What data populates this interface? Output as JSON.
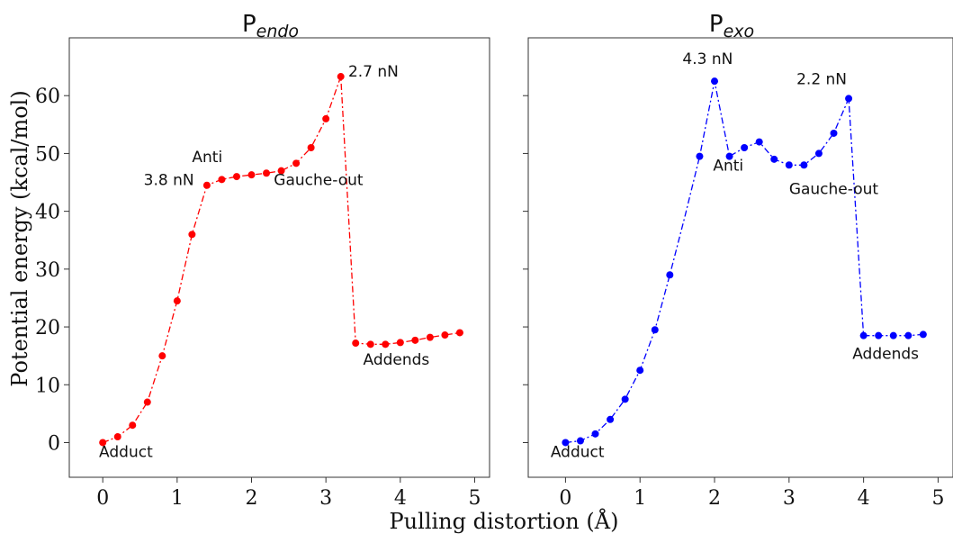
{
  "figure": {
    "ylabel": "Potential energy (kcal/mol)",
    "xlabel": "Pulling distortion (Å)"
  },
  "chart_data": [
    {
      "type": "line",
      "title_main": "P",
      "title_sub": "endo",
      "color": "#ff0000",
      "xlim": [
        -0.45,
        5.2
      ],
      "ylim": [
        -6,
        70
      ],
      "xticks": [
        0,
        1,
        2,
        3,
        4,
        5
      ],
      "yticks": [
        0,
        10,
        20,
        30,
        40,
        50,
        60
      ],
      "x": [
        0,
        0.2,
        0.4,
        0.6,
        0.8,
        1.0,
        1.2,
        1.4,
        1.6,
        1.8,
        2.0,
        2.2,
        2.4,
        2.6,
        2.8,
        3.0,
        3.2,
        3.4,
        3.6,
        3.8,
        4.0,
        4.2,
        4.4,
        4.6,
        4.8
      ],
      "y": [
        0,
        1,
        3,
        7,
        15,
        24.5,
        36,
        44.5,
        45.5,
        46,
        46.3,
        46.6,
        47,
        48.3,
        51,
        56,
        63.3,
        17.2,
        17,
        17,
        17.3,
        17.7,
        18.2,
        18.6,
        19
      ],
      "markers": [
        true,
        true,
        true,
        true,
        true,
        true,
        true,
        true,
        true,
        true,
        true,
        true,
        true,
        true,
        true,
        true,
        true,
        true,
        true,
        true,
        true,
        true,
        true,
        true,
        true
      ],
      "annotations": [
        {
          "text": "3.8 nN",
          "x": 0.55,
          "y": 44.5
        },
        {
          "text": "2.7 nN",
          "x": 3.3,
          "y": 63.3
        },
        {
          "text": "Anti",
          "x": 1.2,
          "y": 48.5
        },
        {
          "text": "Gauche-out",
          "x": 2.3,
          "y": 44.5
        },
        {
          "text": "Addends",
          "x": 3.5,
          "y": 13.5
        },
        {
          "text": "Adduct",
          "x": -0.05,
          "y": -2.5
        }
      ]
    },
    {
      "type": "line",
      "title_main": "P",
      "title_sub": "exo",
      "color": "#0000ff",
      "xlim": [
        -0.5,
        5.2
      ],
      "ylim": [
        -6,
        70
      ],
      "xticks": [
        0,
        1,
        2,
        3,
        4,
        5
      ],
      "yticks": [
        0,
        10,
        20,
        30,
        40,
        50,
        60
      ],
      "x": [
        0,
        0.2,
        0.4,
        0.6,
        0.8,
        1.0,
        1.2,
        1.4,
        1.6,
        1.8,
        2.0,
        2.2,
        2.4,
        2.6,
        2.8,
        3.0,
        3.2,
        3.4,
        3.6,
        3.8,
        4.0,
        4.2,
        4.4,
        4.6,
        4.8
      ],
      "y": [
        0,
        0.3,
        1.5,
        4,
        7.5,
        12.5,
        19.5,
        29,
        39,
        49.5,
        62.5,
        49.5,
        51,
        52,
        49,
        48,
        48,
        50,
        53.5,
        59.5,
        18.5,
        18.5,
        18.5,
        18.5,
        18.7
      ],
      "markers": [
        true,
        true,
        true,
        true,
        true,
        true,
        true,
        true,
        false,
        true,
        true,
        true,
        true,
        true,
        true,
        true,
        true,
        true,
        true,
        true,
        true,
        true,
        true,
        true,
        true
      ],
      "annotations": [
        {
          "text": "4.3 nN",
          "x": 1.57,
          "y": 65.5
        },
        {
          "text": "2.2 nN",
          "x": 3.1,
          "y": 62
        },
        {
          "text": "Anti",
          "x": 1.98,
          "y": 47
        },
        {
          "text": "Gauche-out",
          "x": 3.0,
          "y": 43
        },
        {
          "text": "Addends",
          "x": 3.85,
          "y": 14.5
        },
        {
          "text": "Adduct",
          "x": -0.2,
          "y": -2.5
        }
      ]
    }
  ]
}
